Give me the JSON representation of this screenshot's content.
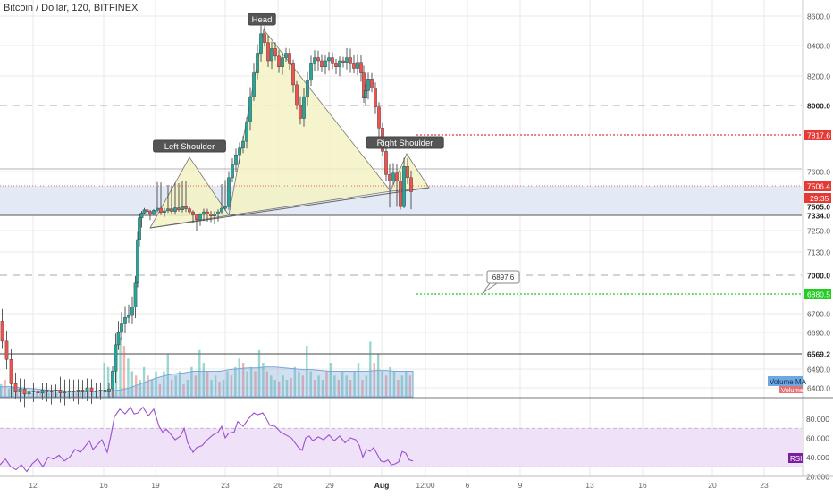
{
  "header": {
    "title": "Bitcoin / Dollar, 120, BITFINEX"
  },
  "colors": {
    "up": "#26a69a",
    "down": "#ef5350",
    "pattern": "#f3f2c4",
    "zone": "#e3eaf6",
    "rsi_band": "#efe1f7",
    "rsi_line": "#9c4fd0",
    "resistance": "#e53935",
    "support": "#22cc22",
    "grid": "#e8e8e8"
  },
  "chart_data": [
    {
      "type": "candlestick",
      "title": "Bitcoin / Dollar, 120, BITFINEX",
      "y_axis": {
        "ticks": [
          8600.0,
          8400.0,
          8200.0,
          8000.0,
          7817.6,
          7600.0,
          7506.4,
          7505.0,
          7334.0,
          7250.0,
          7130.0,
          7000.0,
          6880.5,
          6790.0,
          6690.0,
          6569.2,
          6490.0,
          6400.0
        ],
        "tick_labels": [
          "8600.0",
          "8400.0",
          "8200.0",
          "8000.0",
          "7817.6",
          "7600.0",
          "7506.4",
          "7505.0",
          "7334.0",
          "7250.0",
          "7130.0",
          "7000.0",
          "6880.5",
          "6790.0",
          "6690.0",
          "6569.2",
          "6490.0",
          "6400.0"
        ],
        "countdown_label": "29:35"
      },
      "x_axis": {
        "tick_labels": [
          "12",
          "16",
          "19",
          "23",
          "26",
          "29",
          "Aug",
          "12:00",
          "6",
          "9",
          "13",
          "16",
          "20",
          "23"
        ]
      },
      "annotations": {
        "head": "Head",
        "left_shoulder": "Left Shoulder",
        "right_shoulder": "Right Shoulder",
        "price_callout": "6897.6"
      },
      "levels": {
        "resistance": 7817.6,
        "support": 6880.5,
        "current": 7506.4,
        "zone_top": 7505.0,
        "zone_bottom": 7334.0,
        "round_8000": 8000.0,
        "round_7000": 7000.0,
        "low_line": 6569.2
      },
      "path_points": [
        [
          0,
          6750
        ],
        [
          5,
          6640
        ],
        [
          10,
          6540
        ],
        [
          15,
          6420
        ],
        [
          20,
          6380
        ],
        [
          25,
          6395
        ],
        [
          30,
          6370
        ],
        [
          35,
          6380
        ],
        [
          40,
          6385
        ],
        [
          45,
          6375
        ],
        [
          50,
          6390
        ],
        [
          55,
          6380
        ],
        [
          60,
          6385
        ],
        [
          65,
          6390
        ],
        [
          70,
          6375
        ],
        [
          75,
          6380
        ],
        [
          80,
          6385
        ],
        [
          85,
          6380
        ],
        [
          90,
          6390
        ],
        [
          95,
          6380
        ],
        [
          100,
          6400
        ],
        [
          105,
          6380
        ],
        [
          110,
          6385
        ],
        [
          115,
          6390
        ],
        [
          120,
          6380
        ],
        [
          124,
          6395
        ],
        [
          128,
          6480
        ],
        [
          131,
          6620
        ],
        [
          134,
          6690
        ],
        [
          138,
          6740
        ],
        [
          142,
          6770
        ],
        [
          146,
          6780
        ],
        [
          150,
          6820
        ],
        [
          153,
          6950
        ],
        [
          155,
          7200
        ],
        [
          157,
          7320
        ],
        [
          160,
          7380
        ],
        [
          163,
          7440
        ],
        [
          166,
          7410
        ],
        [
          170,
          7360
        ],
        [
          174,
          7430
        ],
        [
          178,
          7470
        ],
        [
          182,
          7390
        ],
        [
          186,
          7420
        ],
        [
          190,
          7460
        ],
        [
          194,
          7410
        ],
        [
          198,
          7480
        ],
        [
          202,
          7440
        ],
        [
          206,
          7500
        ],
        [
          210,
          7460
        ],
        [
          214,
          7400
        ],
        [
          218,
          7340
        ],
        [
          222,
          7310
        ],
        [
          226,
          7350
        ],
        [
          230,
          7400
        ],
        [
          234,
          7360
        ],
        [
          238,
          7330
        ],
        [
          242,
          7360
        ],
        [
          246,
          7400
        ],
        [
          250,
          7470
        ],
        [
          254,
          7500
        ],
        [
          258,
          7560
        ],
        [
          262,
          7640
        ],
        [
          266,
          7700
        ],
        [
          270,
          7740
        ],
        [
          274,
          7780
        ],
        [
          278,
          7900
        ],
        [
          282,
          8060
        ],
        [
          286,
          8220
        ],
        [
          290,
          8350
        ],
        [
          294,
          8480
        ],
        [
          298,
          8420
        ],
        [
          302,
          8300
        ],
        [
          306,
          8380
        ],
        [
          310,
          8330
        ],
        [
          314,
          8260
        ],
        [
          318,
          8320
        ],
        [
          322,
          8350
        ],
        [
          326,
          8280
        ],
        [
          330,
          8140
        ],
        [
          334,
          8000
        ],
        [
          338,
          7920
        ],
        [
          342,
          8060
        ],
        [
          346,
          8170
        ],
        [
          350,
          8280
        ],
        [
          354,
          8320
        ],
        [
          358,
          8300
        ],
        [
          362,
          8260
        ],
        [
          366,
          8300
        ],
        [
          370,
          8320
        ],
        [
          374,
          8280
        ],
        [
          378,
          8260
        ],
        [
          382,
          8300
        ],
        [
          386,
          8290
        ],
        [
          390,
          8320
        ],
        [
          394,
          8280
        ],
        [
          398,
          8250
        ],
        [
          402,
          8290
        ],
        [
          406,
          8220
        ],
        [
          408,
          8050
        ],
        [
          410,
          8100
        ],
        [
          414,
          8180
        ],
        [
          418,
          8120
        ],
        [
          422,
          7990
        ],
        [
          426,
          7860
        ],
        [
          430,
          7720
        ],
        [
          434,
          7580
        ],
        [
          438,
          7540
        ],
        [
          442,
          7590
        ],
        [
          446,
          7540
        ],
        [
          450,
          7500
        ],
        [
          454,
          7630
        ],
        [
          458,
          7560
        ],
        [
          462,
          7506
        ]
      ],
      "volume": [
        0.15,
        0.2,
        0.1,
        0.12,
        0.08,
        0.1,
        0.09,
        0.05,
        0.04,
        0.05,
        0.05,
        0.06,
        0.05,
        0.06,
        0.05,
        0.06,
        0.07,
        0.05,
        0.06,
        0.05,
        0.07,
        0.06,
        0.05,
        0.06,
        0.07,
        0.08,
        0.4,
        0.35,
        0.3,
        0.55,
        0.7,
        0.6,
        0.45,
        0.3,
        0.25,
        0.2,
        0.35,
        0.25,
        0.2,
        0.3,
        0.15,
        0.3,
        0.5,
        0.2,
        0.25,
        0.3,
        0.15,
        0.2,
        0.35,
        0.25,
        0.55,
        0.4,
        0.3,
        0.2,
        0.25,
        0.18,
        0.2,
        0.3,
        0.25,
        0.35,
        0.45,
        0.4,
        0.3,
        0.35,
        0.3,
        0.55,
        0.4,
        0.3,
        0.25,
        0.2,
        0.18,
        0.25,
        0.2,
        0.22,
        0.35,
        0.3,
        0.25,
        0.6,
        0.3,
        0.2,
        0.25,
        0.2,
        0.3,
        0.4,
        0.25,
        0.2,
        0.3,
        0.25,
        0.2,
        0.3,
        0.4,
        0.2,
        0.25,
        0.65,
        0.4,
        0.5,
        0.3,
        0.25,
        0.35,
        0.3,
        0.2,
        0.25,
        0.3,
        0.25
      ],
      "volume_ma": [
        0.12,
        0.12,
        0.11,
        0.1,
        0.09,
        0.08,
        0.08,
        0.07,
        0.07,
        0.07,
        0.07,
        0.07,
        0.07,
        0.08,
        0.1,
        0.14,
        0.18,
        0.22,
        0.25,
        0.27,
        0.28,
        0.3,
        0.3,
        0.3,
        0.3,
        0.32,
        0.33,
        0.34,
        0.34,
        0.35,
        0.35,
        0.34,
        0.33,
        0.32,
        0.32,
        0.31,
        0.3,
        0.3,
        0.3,
        0.3,
        0.3,
        0.31,
        0.31,
        0.3,
        0.3,
        0.3
      ],
      "rsi": {
        "ylim": [
          20,
          100
        ],
        "ticks": [
          80.0,
          60.0,
          40.0,
          20.0
        ],
        "tick_labels": [
          "80.000",
          "60.000",
          "40.000",
          "20.000"
        ],
        "band": [
          30,
          70
        ],
        "values": [
          [
            0,
            32
          ],
          [
            6,
            38
          ],
          [
            12,
            30
          ],
          [
            18,
            27
          ],
          [
            24,
            32
          ],
          [
            30,
            25
          ],
          [
            36,
            33
          ],
          [
            42,
            38
          ],
          [
            48,
            30
          ],
          [
            54,
            40
          ],
          [
            60,
            38
          ],
          [
            66,
            42
          ],
          [
            72,
            36
          ],
          [
            78,
            40
          ],
          [
            84,
            48
          ],
          [
            90,
            45
          ],
          [
            96,
            52
          ],
          [
            100,
            57
          ],
          [
            104,
            48
          ],
          [
            108,
            52
          ],
          [
            114,
            58
          ],
          [
            120,
            45
          ],
          [
            124,
            62
          ],
          [
            128,
            82
          ],
          [
            134,
            90
          ],
          [
            140,
            85
          ],
          [
            146,
            92
          ],
          [
            150,
            85
          ],
          [
            154,
            86
          ],
          [
            160,
            92
          ],
          [
            166,
            83
          ],
          [
            172,
            90
          ],
          [
            178,
            72
          ],
          [
            182,
            66
          ],
          [
            186,
            69
          ],
          [
            190,
            65
          ],
          [
            196,
            58
          ],
          [
            202,
            62
          ],
          [
            206,
            70
          ],
          [
            210,
            55
          ],
          [
            216,
            45
          ],
          [
            220,
            50
          ],
          [
            226,
            52
          ],
          [
            232,
            58
          ],
          [
            238,
            63
          ],
          [
            244,
            66
          ],
          [
            248,
            72
          ],
          [
            252,
            60
          ],
          [
            256,
            65
          ],
          [
            262,
            66
          ],
          [
            266,
            77
          ],
          [
            272,
            72
          ],
          [
            278,
            80
          ],
          [
            284,
            86
          ],
          [
            288,
            84
          ],
          [
            294,
            86
          ],
          [
            298,
            80
          ],
          [
            302,
            73
          ],
          [
            308,
            72
          ],
          [
            314,
            66
          ],
          [
            320,
            63
          ],
          [
            326,
            60
          ],
          [
            330,
            55
          ],
          [
            334,
            50
          ],
          [
            338,
            47
          ],
          [
            342,
            60
          ],
          [
            346,
            62
          ],
          [
            350,
            57
          ],
          [
            356,
            61
          ],
          [
            362,
            58
          ],
          [
            368,
            63
          ],
          [
            374,
            57
          ],
          [
            380,
            62
          ],
          [
            386,
            55
          ],
          [
            392,
            60
          ],
          [
            398,
            58
          ],
          [
            402,
            52
          ],
          [
            406,
            40
          ],
          [
            410,
            48
          ],
          [
            414,
            46
          ],
          [
            418,
            50
          ],
          [
            422,
            43
          ],
          [
            426,
            36
          ],
          [
            430,
            35
          ],
          [
            434,
            37
          ],
          [
            438,
            32
          ],
          [
            442,
            33
          ],
          [
            446,
            35
          ],
          [
            450,
            46
          ],
          [
            454,
            44
          ],
          [
            458,
            37
          ],
          [
            462,
            36
          ]
        ]
      },
      "legends": {
        "volume": "Volume",
        "volume_ma": "Volume MA",
        "rsi": "RSI"
      }
    }
  ]
}
